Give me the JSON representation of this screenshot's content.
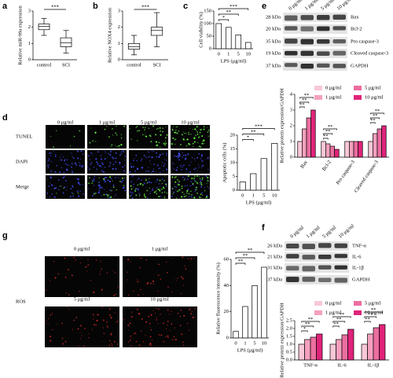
{
  "panel_letters": [
    "a",
    "b",
    "c",
    "d",
    "e",
    "f",
    "g"
  ],
  "chart_data": [
    {
      "type": "box",
      "ylabel": "Relative miR-99a expression",
      "categories": [
        "control",
        "SCI"
      ],
      "boxes": [
        {
          "min": 1.5,
          "q1": 1.85,
          "median": 2.05,
          "q3": 2.2,
          "max": 2.55
        },
        {
          "min": 0.4,
          "q1": 0.8,
          "median": 1.05,
          "q3": 1.35,
          "max": 1.8
        }
      ],
      "ylim": [
        0,
        3
      ],
      "yticks": [
        0,
        1,
        2,
        3
      ],
      "annotations": [
        "***"
      ]
    },
    {
      "type": "box",
      "ylabel": "Relative NOX4 expression",
      "categories": [
        "control",
        "SCI"
      ],
      "boxes": [
        {
          "min": 0.3,
          "q1": 0.65,
          "median": 0.8,
          "q3": 1.0,
          "max": 1.5
        },
        {
          "min": 0.8,
          "q1": 1.5,
          "median": 1.8,
          "q3": 2.0,
          "max": 2.9
        }
      ],
      "ylim": [
        0,
        3
      ],
      "yticks": [
        0,
        1,
        2,
        3
      ],
      "annotations": [
        "***"
      ]
    },
    {
      "type": "bar",
      "ylabel": "Cell viability (%)",
      "xlabel": "LPS (μg/ml)",
      "categories": [
        "0",
        "1",
        "5",
        "10"
      ],
      "values": [
        100,
        85,
        55,
        25
      ],
      "color": "#ffffff",
      "ylim": [
        0,
        150
      ],
      "yticks": [
        0,
        50,
        100,
        150
      ],
      "annotations": [
        "*",
        "**",
        "***"
      ]
    },
    {
      "type": "grouped-bar",
      "ylabel": "Relative protein expression/GAPDH",
      "categories": [
        "Bax",
        "Bcl-2",
        "Pro caspase-3",
        "Cleaved caspase-3"
      ],
      "series": [
        {
          "name": "0 μg/ml",
          "color": "#f8c8d7",
          "values": [
            1,
            1,
            1,
            1
          ]
        },
        {
          "name": "1 μg/ml",
          "color": "#f4a0bf",
          "values": [
            1.8,
            0.85,
            1,
            1.5
          ]
        },
        {
          "name": "5 μg/ml",
          "color": "#ec6ea0",
          "values": [
            2.5,
            0.7,
            1,
            1.8
          ]
        },
        {
          "name": "10 μg/ml",
          "color": "#e0237a",
          "values": [
            3.0,
            0.5,
            1,
            2.0
          ]
        }
      ],
      "ylim": [
        0,
        4
      ],
      "yticks": [
        0,
        1,
        2,
        3,
        4
      ],
      "annotations": [
        [
          "**",
          "**",
          "**"
        ],
        [
          "**",
          "**",
          "**"
        ],
        [],
        [
          "**",
          "**",
          "**"
        ]
      ]
    },
    {
      "type": "bar",
      "ylabel": "Apoptotic cells (%)",
      "xlabel": "LPS (μg/ml)",
      "categories": [
        "0",
        "1",
        "5",
        "10"
      ],
      "values": [
        3,
        6,
        11.5,
        17
      ],
      "color": "#ffffff",
      "ylim": [
        0,
        20
      ],
      "yticks": [
        0,
        5,
        10,
        15,
        20
      ],
      "annotations": [
        "*",
        "**",
        "***"
      ]
    },
    {
      "type": "grouped-bar",
      "ylabel": "Relative protein expression/GAPDH",
      "categories": [
        "TNF-α",
        "IL-6",
        "IL-1β"
      ],
      "series": [
        {
          "name": "0 μg/ml",
          "color": "#f8c8d7",
          "values": [
            1,
            1,
            1
          ]
        },
        {
          "name": "1 μg/ml",
          "color": "#f4a0bf",
          "values": [
            1.3,
            1.3,
            1.65
          ]
        },
        {
          "name": "5 μg/ml",
          "color": "#ec6ea0",
          "values": [
            1.45,
            1.6,
            2.05
          ]
        },
        {
          "name": "10 μg/ml",
          "color": "#e0237a",
          "values": [
            1.65,
            1.95,
            2.25
          ]
        }
      ],
      "ylim": [
        0,
        2.5
      ],
      "yticks": [
        {
          "value": 0,
          "label": "0.0"
        },
        {
          "value": 0.5,
          "label": "0.5"
        },
        {
          "value": 1,
          "label": "1.0"
        },
        {
          "value": 1.5,
          "label": "1.5"
        },
        {
          "value": 2,
          "label": "2.0"
        },
        {
          "value": 2.5,
          "label": "2.5"
        }
      ],
      "annotations": [
        [
          "*",
          "**",
          "**"
        ],
        [
          "**",
          "**",
          "**"
        ],
        [
          "**",
          "**",
          "**"
        ]
      ]
    },
    {
      "type": "bar",
      "ylabel": "Relative fluorescence intensity (%)",
      "xlabel": "LPS (μg/ml)",
      "categories": [
        "0",
        "1",
        "5",
        "10"
      ],
      "values": [
        5,
        24,
        40,
        54
      ],
      "color": "#ffffff",
      "ylim": [
        0,
        60
      ],
      "yticks": [
        0,
        20,
        40,
        60
      ],
      "annotations": [
        "**",
        "**",
        "**"
      ]
    }
  ],
  "blots": [
    {
      "lanes": [
        "0 μg/ml",
        "1 μg/ml",
        "5 μg/ml",
        "10 μg/ml"
      ],
      "sizes": [
        "28 kDa",
        "20 kDa",
        "35 kDa",
        "19 kDa",
        "37 kDa"
      ],
      "proteins": [
        "Bax",
        "Bcl-2",
        "Pro caspase-3",
        "Cleaved caspase-3",
        "GAPDH"
      ]
    },
    {
      "lanes": [
        "0 μg/ml",
        "1 μg/ml",
        "5 μg/ml",
        "10 μg/ml"
      ],
      "sizes": [
        "26 kDa",
        "21 kDa",
        "31 kDa",
        "37 kDa"
      ],
      "proteins": [
        "TNF-α",
        "IL-6",
        "IL-1β",
        "GAPDH"
      ]
    }
  ],
  "images": [
    {
      "columns": [
        "0 μg/ml",
        "1 μg/ml",
        "5 μg/ml",
        "10 μg/ml"
      ],
      "rows": [
        "TUNEL",
        "DAPI",
        "Merge"
      ]
    },
    {
      "columns": [
        "0 μg/ml",
        "1 μg/ml",
        "5 μg/ml",
        "10 μg/ml"
      ],
      "rows": [
        "ROS"
      ]
    }
  ]
}
